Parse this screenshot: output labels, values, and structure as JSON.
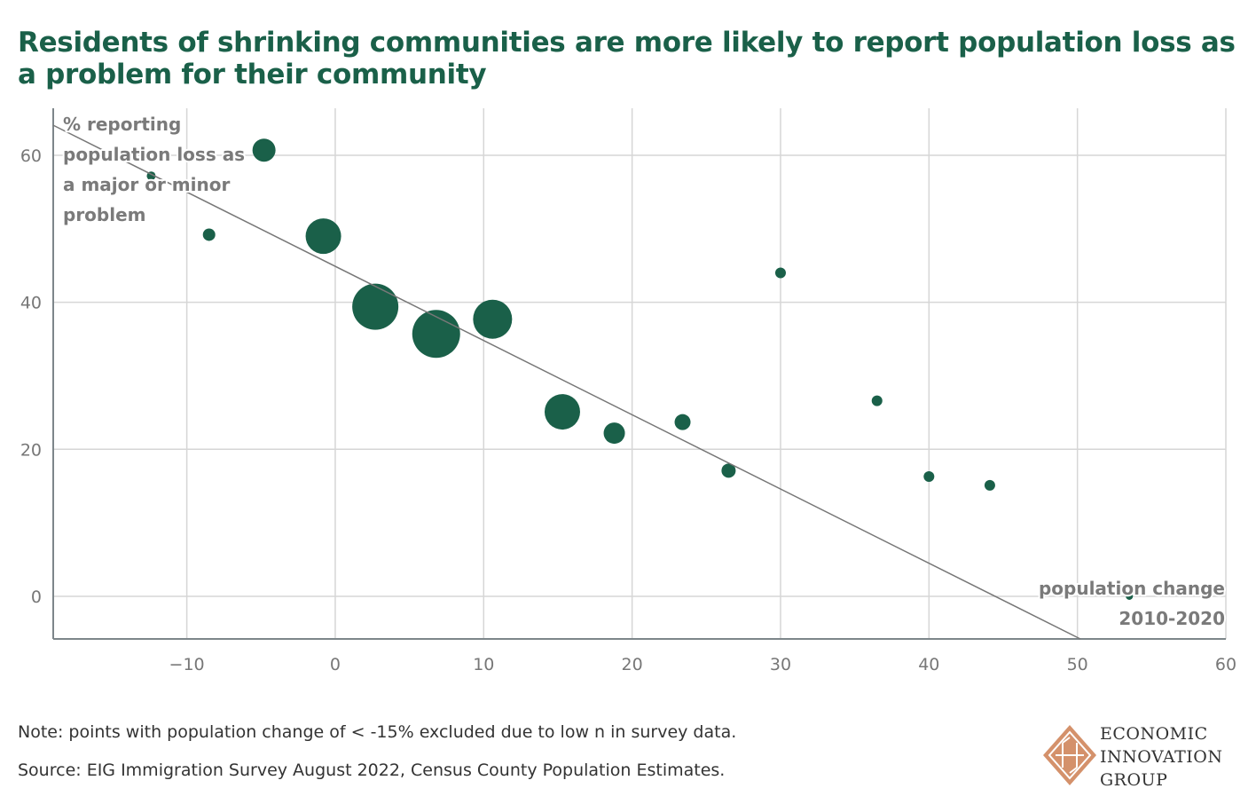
{
  "chart_data": {
    "type": "scatter",
    "title": "Residents of shrinking communities are more likely to report population loss as a problem for their community",
    "xlabel": [
      "population change",
      "2010-2020"
    ],
    "ylabel": [
      "% reporting",
      "population loss as",
      "a major or minor",
      "problem"
    ],
    "xlim": [
      -19,
      60
    ],
    "ylim": [
      -5.8,
      66.4
    ],
    "xticks": [
      -10,
      0,
      10,
      20,
      30,
      40,
      50,
      60
    ],
    "xtick_labels": [
      "−10",
      "0",
      "10",
      "20",
      "30",
      "40",
      "50",
      "60"
    ],
    "yticks": [
      0,
      20,
      40,
      60
    ],
    "ytick_labels": [
      "0",
      "20",
      "40",
      "60"
    ],
    "grid": true,
    "point_color": "#1a6049",
    "points": [
      {
        "x": -12.4,
        "y": 57.2,
        "size": 5
      },
      {
        "x": -8.5,
        "y": 49.2,
        "size": 7
      },
      {
        "x": -4.8,
        "y": 60.7,
        "size": 13
      },
      {
        "x": -0.8,
        "y": 49.0,
        "size": 20
      },
      {
        "x": 2.7,
        "y": 39.4,
        "size": 26
      },
      {
        "x": 6.8,
        "y": 35.7,
        "size": 27
      },
      {
        "x": 10.6,
        "y": 37.7,
        "size": 22
      },
      {
        "x": 15.3,
        "y": 25.1,
        "size": 20
      },
      {
        "x": 18.8,
        "y": 22.2,
        "size": 12
      },
      {
        "x": 23.4,
        "y": 23.7,
        "size": 9
      },
      {
        "x": 26.5,
        "y": 17.1,
        "size": 8
      },
      {
        "x": 30.0,
        "y": 44.0,
        "size": 6
      },
      {
        "x": 36.5,
        "y": 26.6,
        "size": 6
      },
      {
        "x": 40.0,
        "y": 16.3,
        "size": 6
      },
      {
        "x": 44.1,
        "y": 15.1,
        "size": 6
      },
      {
        "x": 53.5,
        "y": 0.0,
        "size": 4
      }
    ],
    "trendline": {
      "intercept": 44.9,
      "slope": -1.01,
      "color": "#777777"
    }
  },
  "notes": {
    "note": "Note: points with population change of < -15% excluded due to low n in survey data.",
    "source": "Source: EIG Immigration Survey August 2022, Census County Population Estimates."
  },
  "logo": {
    "lines": [
      "ECONOMIC",
      "INNOVATION",
      "GROUP"
    ],
    "color": "#d4916b"
  }
}
